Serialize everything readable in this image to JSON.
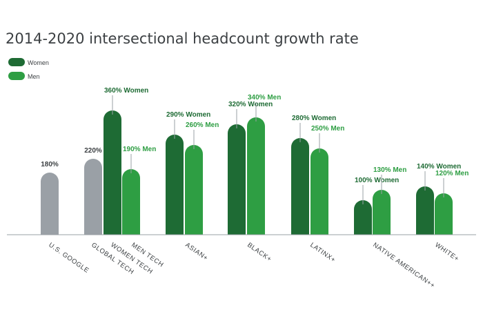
{
  "chart_data": {
    "type": "bar",
    "title": "2014-2020 intersectional headcount growth rate",
    "legend": [
      {
        "name": "Women",
        "color": "#1e6b34"
      },
      {
        "name": "Men",
        "color": "#2e9e43"
      }
    ],
    "colors": {
      "baseline": "#9aa0a6",
      "women": "#1e6b34",
      "men": "#2e9e43",
      "connector": "#9aa0a6",
      "axis": "#9aa0a6"
    },
    "ylim": [
      0,
      380
    ],
    "bars": [
      {
        "category": "U.S. GOOGLE",
        "series": "Baseline",
        "value": 180,
        "label": "180%"
      },
      {
        "category": "GLOBAL TECH",
        "series": "Baseline",
        "value": 220,
        "label": "220%"
      },
      {
        "category": "WOMEN TECH",
        "series": "Women",
        "value": 360,
        "label": "360% Women"
      },
      {
        "category": "MEN TECH",
        "series": "Men",
        "value": 190,
        "label": "190% Men"
      },
      {
        "category": "ASIAN+",
        "series": "Women",
        "value": 290,
        "label": "290% Women"
      },
      {
        "category": "ASIAN+",
        "series": "Men",
        "value": 260,
        "label": "260% Men"
      },
      {
        "category": "BLACK+",
        "series": "Women",
        "value": 320,
        "label": "320% Women"
      },
      {
        "category": "BLACK+",
        "series": "Men",
        "value": 340,
        "label": "340% Men"
      },
      {
        "category": "LATINX+",
        "series": "Women",
        "value": 280,
        "label": "280% Women"
      },
      {
        "category": "LATINX+",
        "series": "Men",
        "value": 250,
        "label": "250% Men"
      },
      {
        "category": "NATIVE AMERICAN++",
        "series": "Women",
        "value": 100,
        "label": "100% Women"
      },
      {
        "category": "NATIVE AMERICAN++",
        "series": "Men",
        "value": 130,
        "label": "130% Men"
      },
      {
        "category": "WHITE+",
        "series": "Women",
        "value": 140,
        "label": "140% Women"
      },
      {
        "category": "WHITE+",
        "series": "Men",
        "value": 120,
        "label": "120% Men"
      }
    ],
    "categories": [
      "U.S. GOOGLE",
      "GLOBAL TECH",
      "WOMEN TECH",
      "MEN TECH",
      "ASIAN+",
      "BLACK+",
      "LATINX+",
      "NATIVE AMERICAN++",
      "WHITE+"
    ]
  }
}
